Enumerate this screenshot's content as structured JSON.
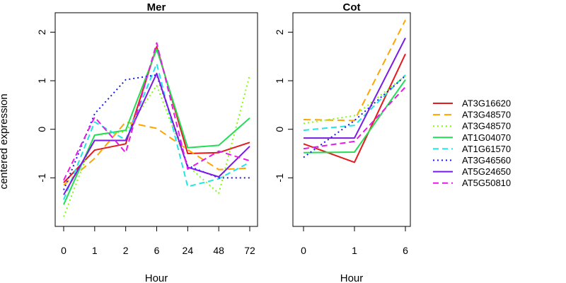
{
  "chart_data": {
    "type": "line",
    "ylabel": "centered expression",
    "ylim": [
      -2,
      2.4
    ],
    "yticks": [
      -1,
      0,
      1,
      2
    ],
    "grid": false,
    "legend_position": "right",
    "series_meta": [
      {
        "name": "AT3G16620",
        "color": "#e41a1c",
        "dash": "solid"
      },
      {
        "name": "AT3G48570",
        "color": "#ffa500",
        "dash": "longdash"
      },
      {
        "name": "AT3G48570",
        "color": "#7fff00",
        "dash": "dotted"
      },
      {
        "name": "AT1G04070",
        "color": "#22dd55",
        "dash": "solid"
      },
      {
        "name": "AT1G61570",
        "color": "#22e5e5",
        "dash": "dashed"
      },
      {
        "name": "AT3G46560",
        "color": "#1a1aee",
        "dash": "dotted"
      },
      {
        "name": "AT5G24650",
        "color": "#7a1ae6",
        "dash": "solid"
      },
      {
        "name": "AT5G50810",
        "color": "#e61ae6",
        "dash": "dashed"
      }
    ],
    "panels": [
      {
        "title": "Mer",
        "xlabel": "Hour",
        "categories": [
          "0",
          "1",
          "2",
          "6",
          "24",
          "48",
          "72"
        ],
        "series": [
          {
            "values": [
              -1.1,
              -0.43,
              -0.3,
              1.7,
              -0.5,
              -0.48,
              -0.27
            ]
          },
          {
            "values": [
              -1.15,
              -0.6,
              0.15,
              0.02,
              -0.42,
              -0.83,
              -0.8
            ]
          },
          {
            "values": [
              -1.8,
              -0.12,
              -0.05,
              0.9,
              -0.75,
              -1.32,
              1.12
            ]
          },
          {
            "values": [
              -1.55,
              -0.12,
              -0.02,
              1.65,
              -0.38,
              -0.33,
              0.23
            ]
          },
          {
            "values": [
              -1.45,
              0.15,
              -0.22,
              1.35,
              -1.18,
              -1.02,
              -0.68
            ]
          },
          {
            "values": [
              -1.25,
              0.32,
              1.02,
              1.12,
              -0.75,
              -1.0,
              -1.0
            ]
          },
          {
            "values": [
              -1.35,
              -0.23,
              -0.23,
              1.15,
              -0.78,
              -0.98,
              -0.35
            ]
          },
          {
            "values": [
              -1.05,
              0.25,
              -0.48,
              1.78,
              -0.82,
              -0.45,
              -0.65
            ]
          }
        ]
      },
      {
        "title": "Cot",
        "xlabel": "Hour",
        "categories": [
          "0",
          "1",
          "6"
        ],
        "series": [
          {
            "values": [
              -0.3,
              -0.68,
              1.55
            ]
          },
          {
            "values": [
              0.2,
              0.18,
              2.25
            ]
          },
          {
            "values": [
              0.12,
              0.28,
              1.1
            ]
          },
          {
            "values": [
              -0.48,
              -0.47,
              1.02
            ]
          },
          {
            "values": [
              -0.02,
              0.08,
              1.12
            ]
          },
          {
            "values": [
              -0.58,
              0.18,
              1.1
            ]
          },
          {
            "values": [
              -0.18,
              -0.18,
              1.88
            ]
          },
          {
            "values": [
              -0.4,
              -0.25,
              0.87
            ]
          }
        ]
      }
    ]
  }
}
